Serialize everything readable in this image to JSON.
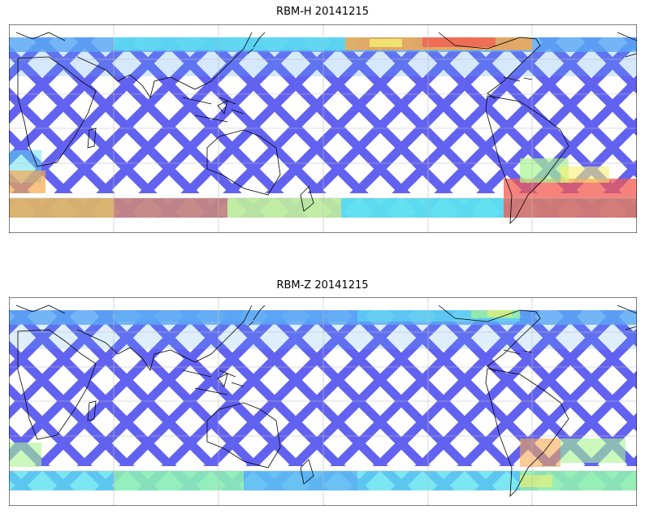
{
  "figure": {
    "panels": [
      {
        "title": "RBM-H 20141215"
      },
      {
        "title": "RBM-Z 20141215"
      }
    ]
  },
  "map_data": {
    "projection": "equirectangular (cylindrical)",
    "center_longitude": 180,
    "lat_range": [
      -90,
      90
    ],
    "graticule": "light gray lines every 30 degrees",
    "coastlines": true,
    "colorbar_shown": false,
    "colormap": "jet-like, semi-transparent",
    "swath_pattern": "criss-crossing satellite orbit swaths, data coverage roughly 60S to 80N",
    "colors": {
      "low": "#5a5af0",
      "low_mid": "#55a8f5",
      "mid": "#5ce0f0",
      "mid_high": "#a8f590",
      "high_mid": "#f5f070",
      "high": "#f5a850",
      "max": "#f25a50"
    }
  }
}
